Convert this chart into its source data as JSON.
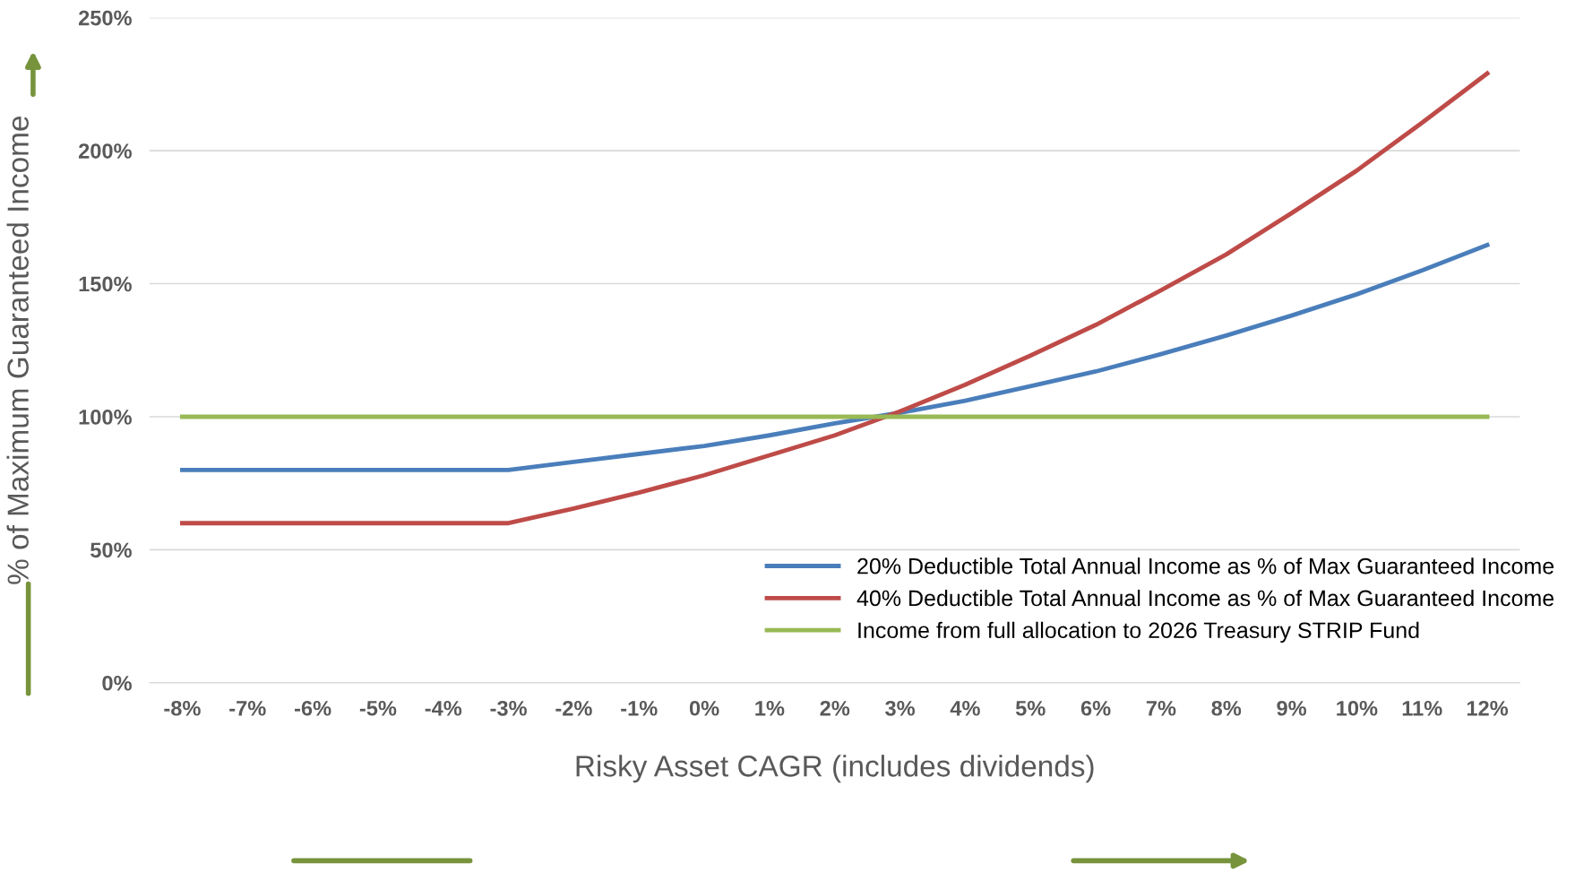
{
  "chart_data": {
    "type": "line",
    "xlabel": "Risky Asset CAGR (includes dividends)",
    "ylabel": "% of Maximum Guaranteed Income",
    "categories": [
      "-8%",
      "-7%",
      "-6%",
      "-5%",
      "-4%",
      "-3%",
      "-2%",
      "-1%",
      "0%",
      "1%",
      "2%",
      "3%",
      "4%",
      "5%",
      "6%",
      "7%",
      "8%",
      "9%",
      "10%",
      "11%",
      "12%"
    ],
    "series": [
      {
        "name": "20% Deductible Total Annual Income as % of Max Guaranteed Income",
        "color": "#4a7ebb",
        "values": [
          80,
          80,
          80,
          80,
          80,
          80,
          83,
          86,
          89,
          93,
          97.5,
          101.5,
          106,
          111.5,
          117,
          123.5,
          130.5,
          138,
          146,
          155,
          164.5
        ]
      },
      {
        "name": "40% Deductible Total Annual Income as % of Max Guaranteed Income",
        "color": "#be4b48",
        "values": [
          60,
          60,
          60,
          60,
          60,
          60,
          65.5,
          71.5,
          78,
          85.5,
          93,
          102,
          112,
          123,
          134.5,
          147.5,
          161,
          176.5,
          192.5,
          210.5,
          229
        ]
      },
      {
        "name": "Income from full allocation to 2026 Treasury STRIP Fund",
        "color": "#98b954",
        "values": [
          100,
          100,
          100,
          100,
          100,
          100,
          100,
          100,
          100,
          100,
          100,
          100,
          100,
          100,
          100,
          100,
          100,
          100,
          100,
          100,
          100
        ]
      }
    ],
    "ylim": [
      0,
      250
    ],
    "yticks": [
      {
        "value": 0,
        "label": "0%"
      },
      {
        "value": 50,
        "label": "50%"
      },
      {
        "value": 100,
        "label": "100%"
      },
      {
        "value": 150,
        "label": "150%"
      },
      {
        "value": 200,
        "label": "200%"
      },
      {
        "value": 250,
        "label": "250%"
      }
    ],
    "grid": "y",
    "legend": "bottom right",
    "marker": "none",
    "line_style": "solid"
  }
}
